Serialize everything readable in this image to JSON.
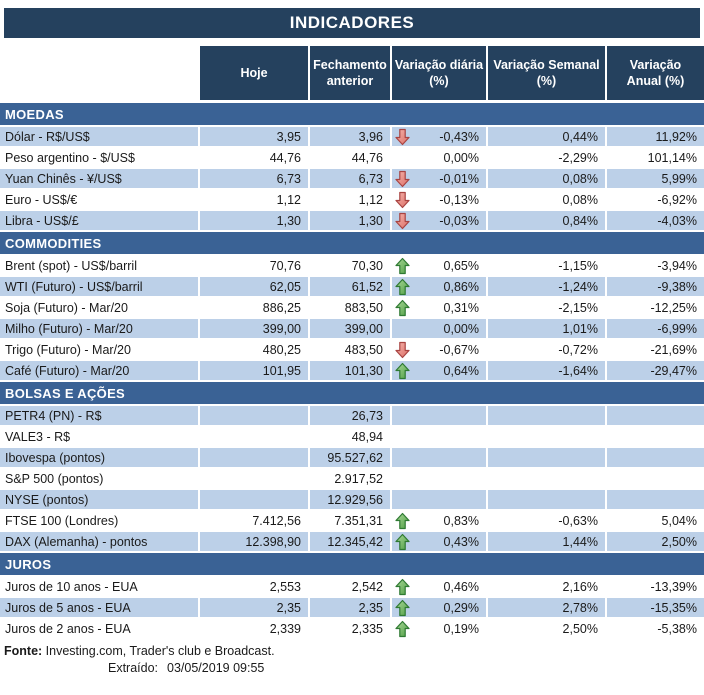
{
  "title": "INDICADORES",
  "columns": [
    "Hoje",
    "Fechamento\nanterior",
    "Variação diária\n(%)",
    "Variação Semanal\n(%)",
    "Variação\nAnual (%)"
  ],
  "sections": [
    {
      "name": "MOEDAS",
      "rows": [
        {
          "label": "Dólar - R$/US$",
          "hoje": "3,95",
          "fechamento": "3,96",
          "arrow": "down",
          "var_diaria": "-0,43%",
          "var_semanal": "0,44%",
          "var_anual": "11,92%",
          "shaded": true
        },
        {
          "label": "Peso argentino - $/US$",
          "hoje": "44,76",
          "fechamento": "44,76",
          "arrow": "",
          "var_diaria": "0,00%",
          "var_semanal": "-2,29%",
          "var_anual": "101,14%",
          "shaded": false
        },
        {
          "label": "Yuan Chinês - ¥/US$",
          "hoje": "6,73",
          "fechamento": "6,73",
          "arrow": "down",
          "var_diaria": "-0,01%",
          "var_semanal": "0,08%",
          "var_anual": "5,99%",
          "shaded": true
        },
        {
          "label": "Euro - US$/€",
          "hoje": "1,12",
          "fechamento": "1,12",
          "arrow": "down",
          "var_diaria": "-0,13%",
          "var_semanal": "0,08%",
          "var_anual": "-6,92%",
          "shaded": false
        },
        {
          "label": "Libra - US$/£",
          "hoje": "1,30",
          "fechamento": "1,30",
          "arrow": "down",
          "var_diaria": "-0,03%",
          "var_semanal": "0,84%",
          "var_anual": "-4,03%",
          "shaded": true
        }
      ]
    },
    {
      "name": "COMMODITIES",
      "rows": [
        {
          "label": "Brent (spot) - US$/barril",
          "hoje": "70,76",
          "fechamento": "70,30",
          "arrow": "up",
          "var_diaria": "0,65%",
          "var_semanal": "-1,15%",
          "var_anual": "-3,94%",
          "shaded": false
        },
        {
          "label": "WTI (Futuro) - US$/barril",
          "hoje": "62,05",
          "fechamento": "61,52",
          "arrow": "up",
          "var_diaria": "0,86%",
          "var_semanal": "-1,24%",
          "var_anual": "-9,38%",
          "shaded": true
        },
        {
          "label": "Soja (Futuro) - Mar/20",
          "hoje": "886,25",
          "fechamento": "883,50",
          "arrow": "up",
          "var_diaria": "0,31%",
          "var_semanal": "-2,15%",
          "var_anual": "-12,25%",
          "shaded": false
        },
        {
          "label": "Milho (Futuro) - Mar/20",
          "hoje": "399,00",
          "fechamento": "399,00",
          "arrow": "",
          "var_diaria": "0,00%",
          "var_semanal": "1,01%",
          "var_anual": "-6,99%",
          "shaded": true
        },
        {
          "label": "Trigo (Futuro) - Mar/20",
          "hoje": "480,25",
          "fechamento": "483,50",
          "arrow": "down",
          "var_diaria": "-0,67%",
          "var_semanal": "-0,72%",
          "var_anual": "-21,69%",
          "shaded": false
        },
        {
          "label": "Café (Futuro) - Mar/20",
          "hoje": "101,95",
          "fechamento": "101,30",
          "arrow": "up",
          "var_diaria": "0,64%",
          "var_semanal": "-1,64%",
          "var_anual": "-29,47%",
          "shaded": true
        }
      ]
    },
    {
      "name": "BOLSAS E AÇÕES",
      "rows": [
        {
          "label": "PETR4 (PN) - R$",
          "hoje": "",
          "fechamento": "26,73",
          "arrow": "",
          "var_diaria": "",
          "var_semanal": "",
          "var_anual": "",
          "shaded": true
        },
        {
          "label": "VALE3 - R$",
          "hoje": "",
          "fechamento": "48,94",
          "arrow": "",
          "var_diaria": "",
          "var_semanal": "",
          "var_anual": "",
          "shaded": false
        },
        {
          "label": "Ibovespa (pontos)",
          "hoje": "",
          "fechamento": "95.527,62",
          "arrow": "",
          "var_diaria": "",
          "var_semanal": "",
          "var_anual": "",
          "shaded": true
        },
        {
          "label": "S&P 500 (pontos)",
          "hoje": "",
          "fechamento": "2.917,52",
          "arrow": "",
          "var_diaria": "",
          "var_semanal": "",
          "var_anual": "",
          "shaded": false
        },
        {
          "label": "NYSE (pontos)",
          "hoje": "",
          "fechamento": "12.929,56",
          "arrow": "",
          "var_diaria": "",
          "var_semanal": "",
          "var_anual": "",
          "shaded": true
        },
        {
          "label": "FTSE 100 (Londres)",
          "hoje": "7.412,56",
          "fechamento": "7.351,31",
          "arrow": "up",
          "var_diaria": "0,83%",
          "var_semanal": "-0,63%",
          "var_anual": "5,04%",
          "shaded": false
        },
        {
          "label": "DAX (Alemanha) - pontos",
          "hoje": "12.398,90",
          "fechamento": "12.345,42",
          "arrow": "up",
          "var_diaria": "0,43%",
          "var_semanal": "1,44%",
          "var_anual": "2,50%",
          "shaded": true
        }
      ]
    },
    {
      "name": "JUROS",
      "rows": [
        {
          "label": "Juros de 10 anos - EUA",
          "hoje": "2,553",
          "fechamento": "2,542",
          "arrow": "up",
          "var_diaria": "0,46%",
          "var_semanal": "2,16%",
          "var_anual": "-13,39%",
          "shaded": false
        },
        {
          "label": "Juros de 5 anos - EUA",
          "hoje": "2,35",
          "fechamento": "2,35",
          "arrow": "up",
          "var_diaria": "0,29%",
          "var_semanal": "2,78%",
          "var_anual": "-15,35%",
          "shaded": true
        },
        {
          "label": "Juros de 2 anos - EUA",
          "hoje": "2,339",
          "fechamento": "2,335",
          "arrow": "up",
          "var_diaria": "0,19%",
          "var_semanal": "2,50%",
          "var_anual": "-5,38%",
          "shaded": false
        }
      ]
    }
  ],
  "footer": {
    "fonte_label": "Fonte:",
    "fonte_text": " Investing.com, Trader's club e Broadcast.",
    "extraido_label": "Extraído:",
    "extraido_value": "03/05/2019 09:55"
  },
  "icons": {
    "up": "up-arrow-icon",
    "down": "down-arrow-icon"
  },
  "colors": {
    "navy": "#25415E",
    "section_blue": "#3A6295",
    "stripe_blue": "#BCD0E8",
    "text_dark": "#1A1A1A",
    "arrow_up_fill_light": "#A9D898",
    "arrow_up_fill_dark": "#4F9E44",
    "arrow_up_stroke": "#2F7A33",
    "arrow_down_fill_light": "#F4B3AC",
    "arrow_down_fill_dark": "#DD7067",
    "arrow_down_stroke": "#A94442"
  }
}
